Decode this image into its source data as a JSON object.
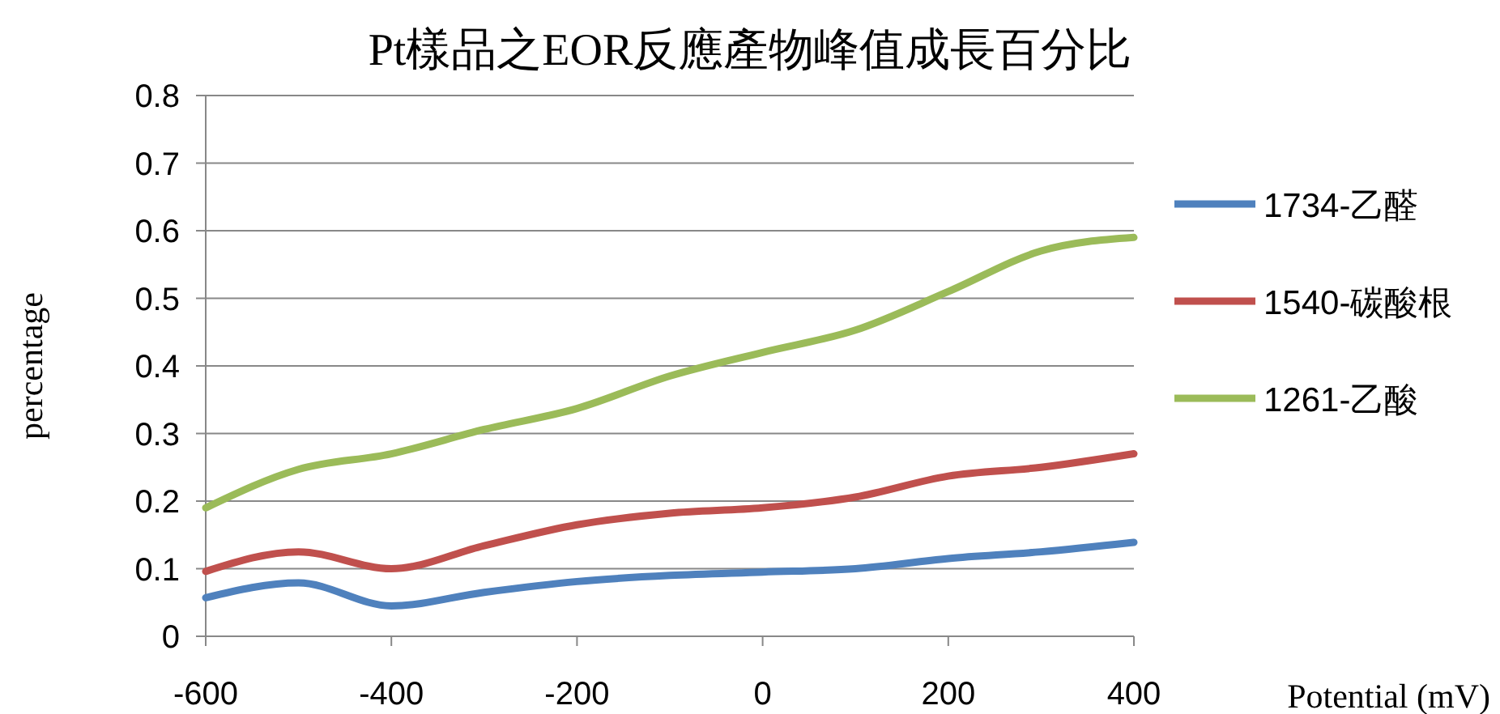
{
  "chart_data": {
    "type": "line",
    "title": "Pt樣品之EOR反應產物峰值成長百分比",
    "xlabel": "Potential (mV)",
    "ylabel": "percentage",
    "x": [
      -600,
      -500,
      -400,
      -300,
      -200,
      -100,
      0,
      100,
      200,
      300,
      400
    ],
    "series": [
      {
        "name": "1734-乙醛",
        "color": "#4f81bd",
        "values": [
          0.057,
          0.079,
          0.045,
          0.065,
          0.081,
          0.09,
          0.095,
          0.1,
          0.115,
          0.125,
          0.139
        ]
      },
      {
        "name": "1540-碳酸根",
        "color": "#c0504d",
        "values": [
          0.096,
          0.125,
          0.1,
          0.134,
          0.165,
          0.182,
          0.19,
          0.206,
          0.237,
          0.25,
          0.27
        ]
      },
      {
        "name": "1261-乙酸",
        "color": "#9bbb59",
        "values": [
          0.19,
          0.247,
          0.27,
          0.306,
          0.337,
          0.385,
          0.42,
          0.453,
          0.51,
          0.57,
          0.59
        ]
      }
    ],
    "xlim": [
      -600,
      400
    ],
    "xticks": [
      -600,
      -400,
      -200,
      0,
      200,
      400
    ],
    "ylim": [
      0,
      0.8
    ],
    "yticks": [
      0,
      0.1,
      0.2,
      0.3,
      0.4,
      0.5,
      0.6,
      0.7,
      0.8
    ],
    "grid": "y",
    "legend": "right"
  }
}
